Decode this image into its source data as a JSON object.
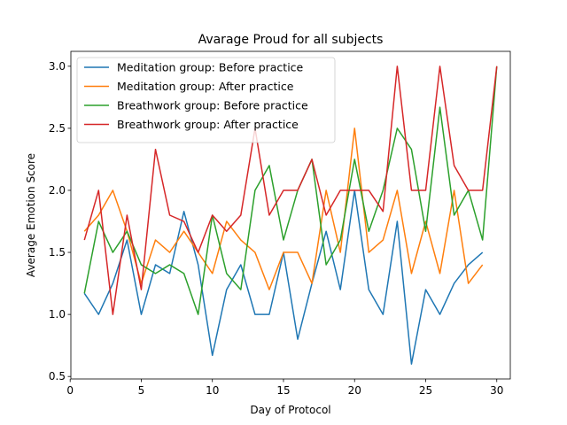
{
  "chart_data": {
    "type": "line",
    "title": "Avarage Proud for all subjects",
    "xlabel": "Day of Protocol",
    "ylabel": "Average Emotion Score",
    "xlim": [
      0.05,
      30.95
    ],
    "ylim": [
      0.48,
      3.12
    ],
    "xticks": [
      0,
      5,
      10,
      15,
      20,
      25,
      30
    ],
    "yticks": [
      0.5,
      1.0,
      1.5,
      2.0,
      2.5,
      3.0
    ],
    "legend_position": "top-left",
    "grid": false,
    "series": [
      {
        "name": "Meditation group: Before practice",
        "color": "#1f77b4",
        "x": [
          1,
          2,
          3,
          4,
          5,
          6,
          7,
          8,
          9,
          10,
          11,
          12,
          13,
          14,
          15,
          16,
          17,
          18,
          19,
          20,
          21,
          22,
          23,
          24,
          25,
          26,
          27,
          28,
          29
        ],
        "y": [
          1.17,
          1.0,
          1.25,
          1.6,
          1.0,
          1.4,
          1.33,
          1.83,
          1.4,
          0.67,
          1.2,
          1.4,
          1.0,
          1.0,
          1.5,
          0.8,
          1.25,
          1.67,
          1.2,
          2.0,
          1.2,
          1.0,
          1.75,
          0.6,
          1.2,
          1.0,
          1.25,
          1.4,
          1.5
        ]
      },
      {
        "name": "Meditation group: After practice",
        "color": "#ff7f0e",
        "x": [
          1,
          2,
          3,
          4,
          5,
          6,
          7,
          8,
          9,
          10,
          11,
          12,
          13,
          14,
          15,
          16,
          17,
          18,
          19,
          20,
          21,
          22,
          23,
          24,
          25,
          26,
          27,
          28,
          29
        ],
        "y": [
          1.67,
          1.8,
          2.0,
          1.67,
          1.25,
          1.6,
          1.5,
          1.67,
          1.5,
          1.33,
          1.75,
          1.6,
          1.5,
          1.2,
          1.5,
          1.5,
          1.25,
          2.0,
          1.5,
          2.5,
          1.5,
          1.6,
          2.0,
          1.33,
          1.75,
          1.33,
          2.0,
          1.25,
          1.4
        ]
      },
      {
        "name": "Breathwork group: Before practice",
        "color": "#2ca02c",
        "x": [
          1,
          2,
          3,
          4,
          5,
          6,
          7,
          8,
          9,
          10,
          11,
          12,
          13,
          14,
          15,
          16,
          17,
          18,
          19,
          20,
          21,
          22,
          23,
          24,
          25,
          26,
          27,
          28,
          29,
          30
        ],
        "y": [
          1.17,
          1.75,
          1.5,
          1.67,
          1.4,
          1.33,
          1.4,
          1.33,
          1.0,
          1.8,
          1.33,
          1.2,
          2.0,
          2.2,
          1.6,
          2.0,
          2.25,
          1.4,
          1.6,
          2.25,
          1.67,
          2.0,
          2.5,
          2.33,
          1.67,
          2.67,
          1.8,
          2.0,
          1.6,
          3.0
        ]
      },
      {
        "name": "Breathwork group: After practice",
        "color": "#d62728",
        "x": [
          1,
          2,
          3,
          4,
          5,
          6,
          7,
          8,
          9,
          10,
          11,
          12,
          13,
          14,
          15,
          16,
          17,
          18,
          19,
          20,
          21,
          22,
          23,
          24,
          25,
          26,
          27,
          28,
          29,
          30
        ],
        "y": [
          1.6,
          2.0,
          1.0,
          1.8,
          1.2,
          2.33,
          1.8,
          1.75,
          1.5,
          1.8,
          1.67,
          1.8,
          2.5,
          1.8,
          2.0,
          2.0,
          2.25,
          1.8,
          2.0,
          2.0,
          2.0,
          1.83,
          3.0,
          2.0,
          2.0,
          3.0,
          2.2,
          2.0,
          2.0,
          3.0
        ]
      }
    ]
  }
}
